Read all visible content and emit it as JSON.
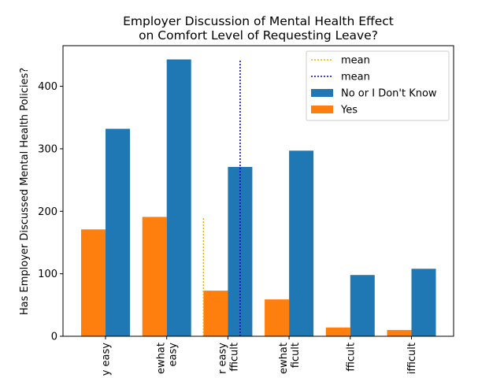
{
  "chart_data": {
    "type": "bar",
    "title": [
      "Employer Discussion of Mental Health Effect",
      "on Comfort Level of Requesting Leave?"
    ],
    "xlabel": "",
    "ylabel": "Has Employer Discussed Mental Health Policies?",
    "ylim": [
      0,
      465
    ],
    "yticks": [
      0,
      100,
      200,
      300,
      400
    ],
    "categories": [
      [
        "y easy"
      ],
      [
        "ewhat",
        "easy"
      ],
      [
        "r easy",
        "fficult"
      ],
      [
        "ewhat",
        "ficult"
      ],
      [
        "fficult"
      ],
      [
        "ifficult"
      ]
    ],
    "series": [
      {
        "name": "No or I Don't Know",
        "color": "#1f77b4",
        "values": [
          332,
          443,
          271,
          297,
          98,
          108
        ]
      },
      {
        "name": "Yes",
        "color": "#ff7f0e",
        "values": [
          171,
          191,
          73,
          59,
          14,
          10
        ]
      }
    ],
    "mean_lines": [
      {
        "name": "mean",
        "color": "#ffa500",
        "style": "dotted",
        "x_position": 1.6,
        "y_range": [
          0,
          190
        ]
      },
      {
        "name": "mean",
        "color": "#0000cd",
        "style": "dotted",
        "x_position": 2.2,
        "y_range": [
          0,
          441
        ]
      }
    ],
    "legend_position": "top-right"
  }
}
